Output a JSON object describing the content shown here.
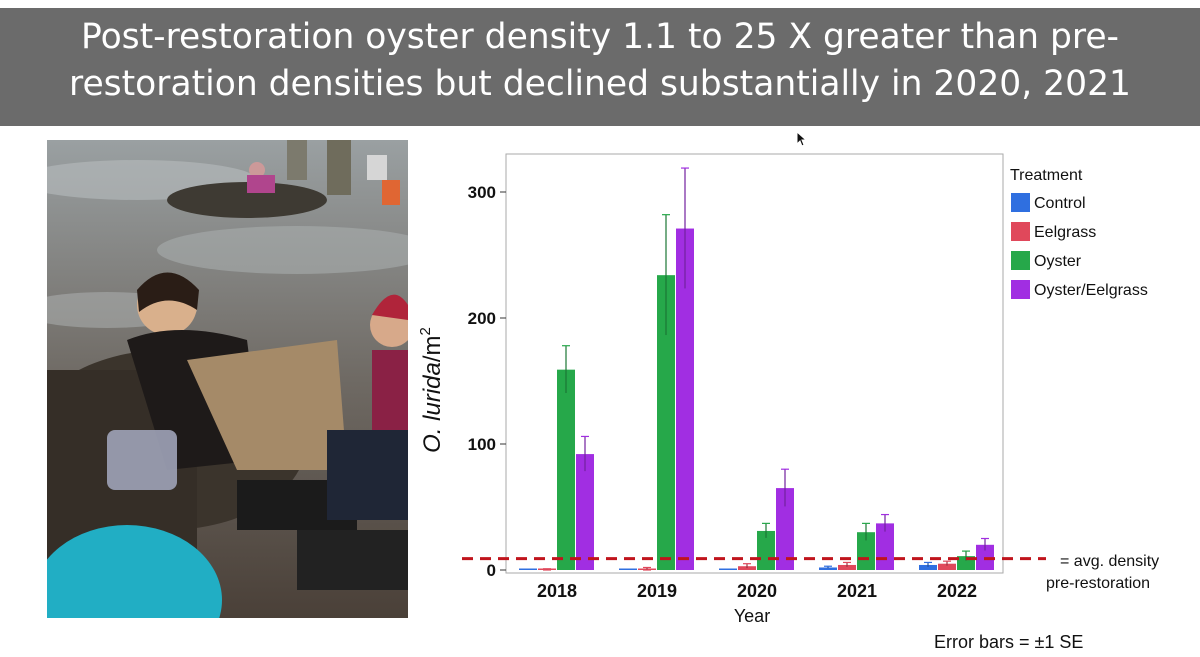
{
  "title": {
    "line1": "Post-restoration oyster density 1.1 to 25 X greater than pre-",
    "line2": "restoration densities but declined substantially in 2020, 2021"
  },
  "photo": {
    "description_icon": "field-photo"
  },
  "chart_data": {
    "type": "bar",
    "categories": [
      "2018",
      "2019",
      "2020",
      "2021",
      "2022"
    ],
    "xlabel": "Year",
    "ylabel_main": "O. lurida",
    "ylabel_unit": "/m",
    "ylabel_sup": "2",
    "ylim": [
      0,
      325
    ],
    "yticks": [
      0,
      100,
      200,
      300
    ],
    "legend_title": "Treatment",
    "legend_position": "right",
    "grid": false,
    "series": [
      {
        "name": "Control",
        "color": "#2f6fe0",
        "values": [
          0,
          0,
          0,
          2,
          4
        ],
        "se": [
          0,
          0,
          0,
          1,
          2
        ]
      },
      {
        "name": "Eelgrass",
        "color": "#e0485b",
        "values": [
          0,
          1,
          3,
          4,
          5
        ],
        "se": [
          1,
          1,
          2,
          2,
          2
        ]
      },
      {
        "name": "Oyster",
        "color": "#26a84a",
        "values": [
          159,
          234,
          31,
          30,
          11
        ],
        "se": [
          19,
          48,
          6,
          7,
          4
        ]
      },
      {
        "name": "Oyster/Eelgrass",
        "color": "#a12ee2",
        "values": [
          92,
          271,
          65,
          37,
          20
        ],
        "se": [
          14,
          48,
          15,
          7,
          5
        ]
      }
    ],
    "reference_line": {
      "value": 9,
      "color": "#c0141c",
      "label_line1": "= avg. density",
      "label_line2": "pre-restoration"
    },
    "footnote": "Error bars = ±1 SE"
  }
}
